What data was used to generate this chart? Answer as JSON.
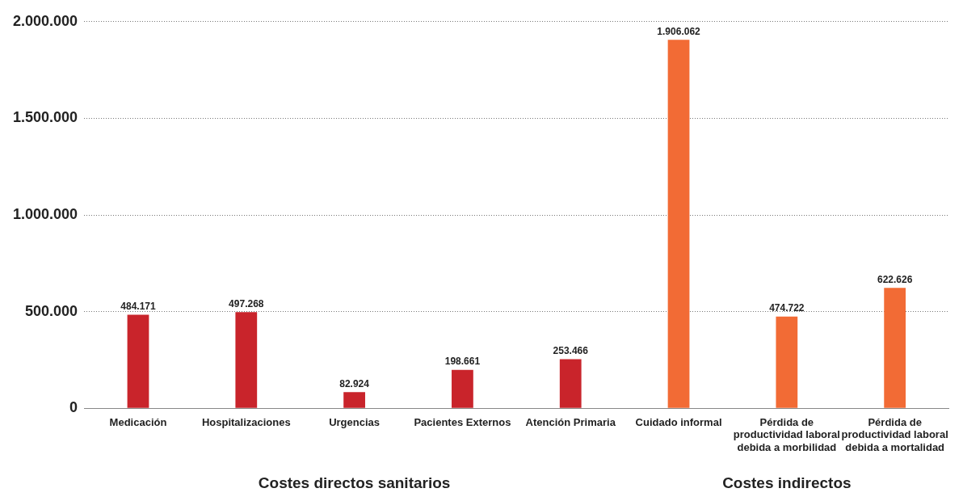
{
  "chart_data": {
    "type": "bar",
    "categories": [
      "Medicación",
      "Hospitalizaciones",
      "Urgencias",
      "Pacientes Externos",
      "Atención Primaria",
      "Cuidado informal",
      "Pérdida de productividad laboral debida a morbilidad",
      "Pérdida de productividad laboral debida a mortalidad"
    ],
    "values": [
      484171,
      497268,
      82924,
      198661,
      253466,
      1906062,
      474722,
      622626
    ],
    "colors": [
      "#c9242b",
      "#c9242b",
      "#c9242b",
      "#c9242b",
      "#c9242b",
      "#f26b35",
      "#f26b35",
      "#f26b35"
    ],
    "value_labels": [
      "484.171",
      "497.268",
      "82.924",
      "198.661",
      "253.466",
      "1.906.062",
      "474.722",
      "622.626"
    ],
    "ylim": [
      0,
      2000000
    ],
    "yticks": [
      {
        "value": 0,
        "label": "0"
      },
      {
        "value": 500000,
        "label": "500.000"
      },
      {
        "value": 1000000,
        "label": "1.000.000"
      },
      {
        "value": 1500000,
        "label": "1.500.000"
      },
      {
        "value": 2000000,
        "label": "2.000.000"
      }
    ],
    "grid": "y",
    "legend": false,
    "annotations": [
      "Costes directos sanitarios",
      "Costes indirectos"
    ]
  }
}
